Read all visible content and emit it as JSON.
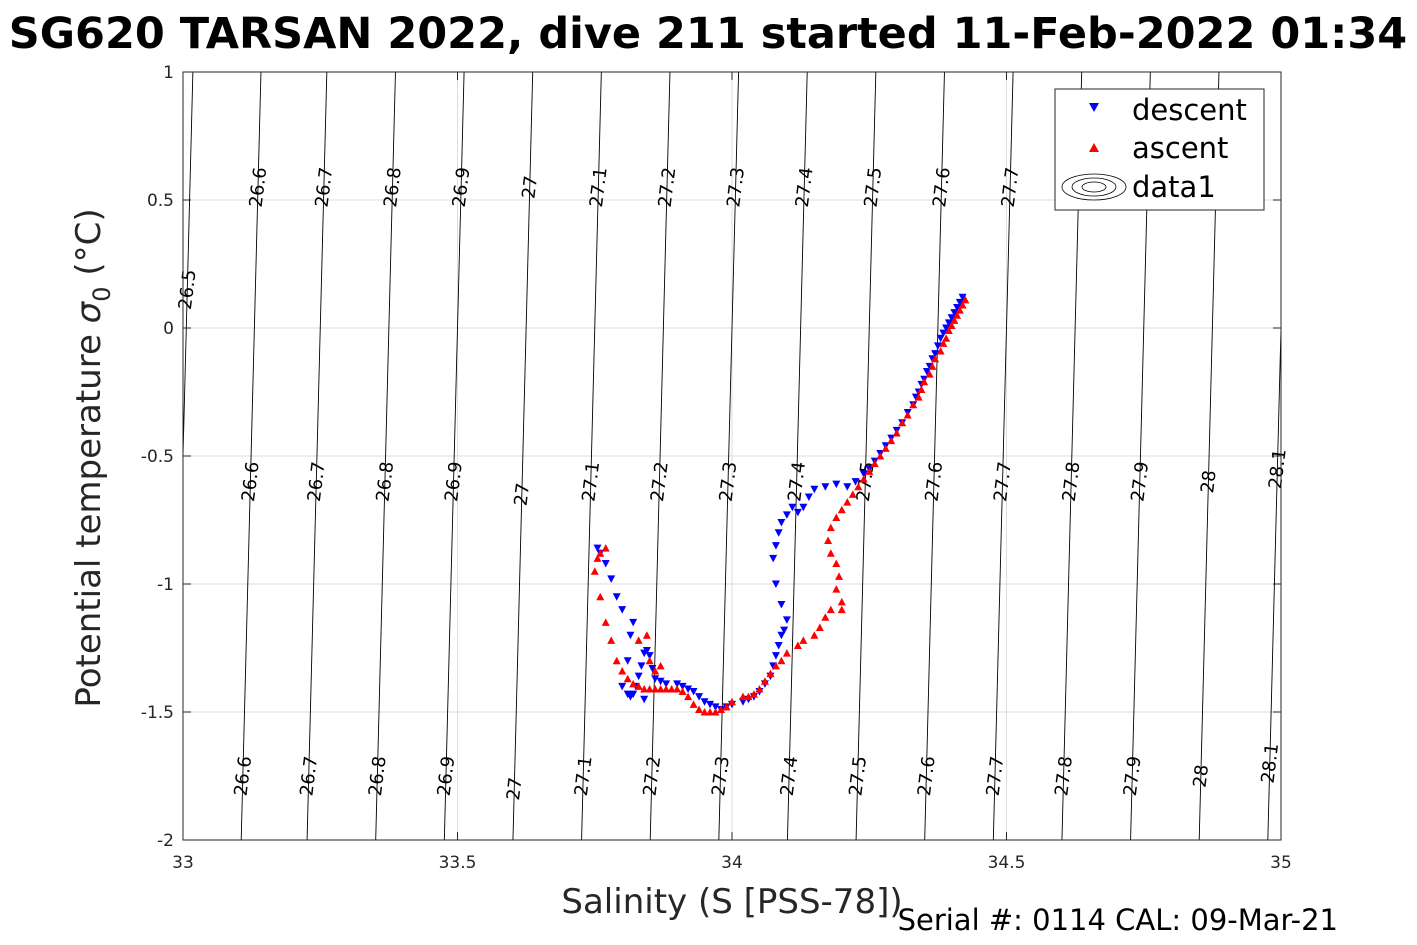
{
  "chart_data": {
    "type": "scatter",
    "title": "SG620 TARSAN 2022, dive 211 started 11-Feb-2022 01:34",
    "xlabel": "Salinity (S [PSS-78])",
    "ylabel_main": "Potential temperature ",
    "ylabel_sigma": "σ",
    "ylabel_sub": "0",
    "ylabel_unit": " (°C)",
    "xlim": [
      33,
      35
    ],
    "ylim": [
      -2,
      1
    ],
    "xticks": [
      33,
      33.5,
      34,
      34.5,
      35
    ],
    "xtick_labels": [
      "33",
      "33.5",
      "34",
      "34.5",
      "35"
    ],
    "yticks": [
      -2,
      -1.5,
      -1,
      -0.5,
      0,
      0.5,
      1
    ],
    "ytick_labels": [
      "-2",
      "-1.5",
      "-1",
      "-0.5",
      "0",
      "0.5",
      "1"
    ],
    "grid": true,
    "legend_position": "top-right",
    "footer": "Serial #: 0114  CAL: 09-Mar-21",
    "colors": {
      "descent": "#0000ff",
      "ascent": "#ff0000",
      "contour": "#000000",
      "grid": "#dddddd",
      "axis": "#262626"
    },
    "contours": [
      {
        "level": "26.5",
        "s_at_t0": 33.006,
        "labels_t": [
          0.15
        ]
      },
      {
        "level": "26.6",
        "s_at_t0": 33.13,
        "labels_t": [
          0.55,
          -0.6,
          -1.75
        ]
      },
      {
        "level": "26.7",
        "s_at_t0": 33.25,
        "labels_t": [
          0.55,
          -0.6,
          -1.75
        ]
      },
      {
        "level": "26.8",
        "s_at_t0": 33.375,
        "labels_t": [
          0.55,
          -0.6,
          -1.75
        ]
      },
      {
        "level": "26.9",
        "s_at_t0": 33.5,
        "labels_t": [
          0.55,
          -0.6,
          -1.75
        ]
      },
      {
        "level": "27",
        "s_at_t0": 33.625,
        "labels_t": [
          0.55,
          -0.65,
          -1.8
        ]
      },
      {
        "level": "27.1",
        "s_at_t0": 33.75,
        "labels_t": [
          0.55,
          -0.6,
          -1.75
        ]
      },
      {
        "level": "27.2",
        "s_at_t0": 33.875,
        "labels_t": [
          0.55,
          -0.6,
          -1.75
        ]
      },
      {
        "level": "27.3",
        "s_at_t0": 34.0,
        "labels_t": [
          0.55,
          -0.6,
          -1.75
        ]
      },
      {
        "level": "27.4",
        "s_at_t0": 34.125,
        "labels_t": [
          0.55,
          -0.6,
          -1.75
        ]
      },
      {
        "level": "27.5",
        "s_at_t0": 34.25,
        "labels_t": [
          0.55,
          -0.6,
          -1.75
        ]
      },
      {
        "level": "27.6",
        "s_at_t0": 34.375,
        "labels_t": [
          0.55,
          -0.6,
          -1.75
        ]
      },
      {
        "level": "27.7",
        "s_at_t0": 34.5,
        "labels_t": [
          0.55,
          -0.6,
          -1.75
        ]
      },
      {
        "level": "27.8",
        "s_at_t0": 34.625,
        "labels_t": [
          -0.6,
          -1.75
        ]
      },
      {
        "level": "27.9",
        "s_at_t0": 34.75,
        "labels_t": [
          -0.6,
          -1.75
        ]
      },
      {
        "level": "28",
        "s_at_t0": 34.875,
        "labels_t": [
          -0.6,
          -1.75
        ]
      },
      {
        "level": "28.1",
        "s_at_t0": 35.0,
        "labels_t": [
          -0.55,
          -1.7
        ]
      }
    ],
    "series": [
      {
        "name": "descent",
        "marker": "triangle-down",
        "points": [
          [
            34.42,
            0.12
          ],
          [
            34.415,
            0.1
          ],
          [
            34.41,
            0.08
          ],
          [
            34.405,
            0.06
          ],
          [
            34.4,
            0.04
          ],
          [
            34.395,
            0.02
          ],
          [
            34.39,
            0.0
          ],
          [
            34.385,
            -0.02
          ],
          [
            34.38,
            -0.04
          ],
          [
            34.375,
            -0.07
          ],
          [
            34.37,
            -0.1
          ],
          [
            34.365,
            -0.12
          ],
          [
            34.36,
            -0.15
          ],
          [
            34.355,
            -0.17
          ],
          [
            34.35,
            -0.2
          ],
          [
            34.345,
            -0.22
          ],
          [
            34.34,
            -0.25
          ],
          [
            34.335,
            -0.27
          ],
          [
            34.33,
            -0.3
          ],
          [
            34.32,
            -0.33
          ],
          [
            34.31,
            -0.37
          ],
          [
            34.3,
            -0.4
          ],
          [
            34.29,
            -0.43
          ],
          [
            34.28,
            -0.46
          ],
          [
            34.27,
            -0.49
          ],
          [
            34.26,
            -0.52
          ],
          [
            34.25,
            -0.55
          ],
          [
            34.24,
            -0.57
          ],
          [
            34.225,
            -0.6
          ],
          [
            34.21,
            -0.62
          ],
          [
            34.19,
            -0.61
          ],
          [
            34.17,
            -0.62
          ],
          [
            34.15,
            -0.63
          ],
          [
            34.14,
            -0.66
          ],
          [
            34.13,
            -0.7
          ],
          [
            34.12,
            -0.72
          ],
          [
            34.11,
            -0.7
          ],
          [
            34.1,
            -0.73
          ],
          [
            34.09,
            -0.76
          ],
          [
            34.085,
            -0.8
          ],
          [
            34.08,
            -0.85
          ],
          [
            34.075,
            -0.9
          ],
          [
            34.08,
            -1.0
          ],
          [
            34.09,
            -1.08
          ],
          [
            34.1,
            -1.14
          ],
          [
            34.095,
            -1.18
          ],
          [
            34.09,
            -1.2
          ],
          [
            34.085,
            -1.24
          ],
          [
            34.08,
            -1.28
          ],
          [
            34.075,
            -1.32
          ],
          [
            34.07,
            -1.36
          ],
          [
            34.06,
            -1.39
          ],
          [
            34.05,
            -1.42
          ],
          [
            34.04,
            -1.44
          ],
          [
            34.03,
            -1.45
          ],
          [
            34.02,
            -1.46
          ],
          [
            34.0,
            -1.47
          ],
          [
            33.99,
            -1.48
          ],
          [
            33.98,
            -1.49
          ],
          [
            33.97,
            -1.48
          ],
          [
            33.96,
            -1.47
          ],
          [
            33.95,
            -1.46
          ],
          [
            33.94,
            -1.44
          ],
          [
            33.93,
            -1.42
          ],
          [
            33.92,
            -1.41
          ],
          [
            33.91,
            -1.4
          ],
          [
            33.9,
            -1.39
          ],
          [
            33.88,
            -1.39
          ],
          [
            33.87,
            -1.38
          ],
          [
            33.86,
            -1.37
          ],
          [
            33.855,
            -1.33
          ],
          [
            33.85,
            -1.28
          ],
          [
            33.845,
            -1.26
          ],
          [
            33.84,
            -1.27
          ],
          [
            33.835,
            -1.32
          ],
          [
            33.83,
            -1.36
          ],
          [
            33.825,
            -1.4
          ],
          [
            33.82,
            -1.43
          ],
          [
            33.815,
            -1.44
          ],
          [
            33.81,
            -1.43
          ],
          [
            33.8,
            -1.4
          ],
          [
            33.81,
            -1.3
          ],
          [
            33.815,
            -1.2
          ],
          [
            33.8,
            -1.1
          ],
          [
            33.79,
            -1.05
          ],
          [
            33.78,
            -0.98
          ],
          [
            33.77,
            -0.92
          ],
          [
            33.76,
            -0.88
          ],
          [
            33.755,
            -0.86
          ],
          [
            33.84,
            -1.45
          ],
          [
            33.82,
            -1.15
          ]
        ]
      },
      {
        "name": "ascent",
        "marker": "triangle-up",
        "points": [
          [
            34.425,
            0.11
          ],
          [
            34.42,
            0.09
          ],
          [
            34.415,
            0.07
          ],
          [
            34.41,
            0.05
          ],
          [
            34.405,
            0.03
          ],
          [
            34.4,
            0.01
          ],
          [
            34.395,
            -0.01
          ],
          [
            34.39,
            -0.04
          ],
          [
            34.385,
            -0.06
          ],
          [
            34.38,
            -0.09
          ],
          [
            34.37,
            -0.12
          ],
          [
            34.365,
            -0.15
          ],
          [
            34.36,
            -0.18
          ],
          [
            34.35,
            -0.21
          ],
          [
            34.345,
            -0.24
          ],
          [
            34.34,
            -0.27
          ],
          [
            34.33,
            -0.3
          ],
          [
            34.32,
            -0.34
          ],
          [
            34.31,
            -0.37
          ],
          [
            34.3,
            -0.41
          ],
          [
            34.29,
            -0.44
          ],
          [
            34.28,
            -0.47
          ],
          [
            34.27,
            -0.5
          ],
          [
            34.26,
            -0.53
          ],
          [
            34.25,
            -0.56
          ],
          [
            34.24,
            -0.59
          ],
          [
            34.23,
            -0.62
          ],
          [
            34.22,
            -0.65
          ],
          [
            34.21,
            -0.68
          ],
          [
            34.2,
            -0.71
          ],
          [
            34.19,
            -0.74
          ],
          [
            34.18,
            -0.78
          ],
          [
            34.175,
            -0.83
          ],
          [
            34.18,
            -0.88
          ],
          [
            34.19,
            -0.92
          ],
          [
            34.195,
            -0.97
          ],
          [
            34.19,
            -1.02
          ],
          [
            34.2,
            -1.07
          ],
          [
            34.2,
            -1.1
          ],
          [
            34.18,
            -1.1
          ],
          [
            34.17,
            -1.13
          ],
          [
            34.16,
            -1.17
          ],
          [
            34.15,
            -1.2
          ],
          [
            34.13,
            -1.22
          ],
          [
            34.12,
            -1.24
          ],
          [
            34.1,
            -1.27
          ],
          [
            34.09,
            -1.3
          ],
          [
            34.08,
            -1.32
          ],
          [
            34.07,
            -1.35
          ],
          [
            34.06,
            -1.38
          ],
          [
            34.05,
            -1.41
          ],
          [
            34.04,
            -1.43
          ],
          [
            34.03,
            -1.44
          ],
          [
            34.02,
            -1.44
          ],
          [
            34.0,
            -1.46
          ],
          [
            33.99,
            -1.48
          ],
          [
            33.98,
            -1.49
          ],
          [
            33.97,
            -1.5
          ],
          [
            33.96,
            -1.5
          ],
          [
            33.95,
            -1.5
          ],
          [
            33.94,
            -1.49
          ],
          [
            33.93,
            -1.47
          ],
          [
            33.92,
            -1.44
          ],
          [
            33.91,
            -1.42
          ],
          [
            33.9,
            -1.41
          ],
          [
            33.89,
            -1.41
          ],
          [
            33.88,
            -1.41
          ],
          [
            33.87,
            -1.41
          ],
          [
            33.86,
            -1.41
          ],
          [
            33.85,
            -1.41
          ],
          [
            33.84,
            -1.41
          ],
          [
            33.83,
            -1.4
          ],
          [
            33.82,
            -1.39
          ],
          [
            33.81,
            -1.37
          ],
          [
            33.8,
            -1.34
          ],
          [
            33.79,
            -1.3
          ],
          [
            33.78,
            -1.22
          ],
          [
            33.77,
            -1.15
          ],
          [
            33.76,
            -1.05
          ],
          [
            33.75,
            -0.95
          ],
          [
            33.76,
            -0.88
          ],
          [
            33.77,
            -0.86
          ],
          [
            33.755,
            -0.9
          ],
          [
            33.85,
            -1.3
          ],
          [
            33.86,
            -1.34
          ],
          [
            33.83,
            -1.22
          ],
          [
            33.845,
            -1.2
          ],
          [
            33.87,
            -1.32
          ]
        ]
      }
    ],
    "legend": [
      {
        "label": "descent"
      },
      {
        "label": "ascent"
      },
      {
        "label": "data1"
      }
    ]
  }
}
